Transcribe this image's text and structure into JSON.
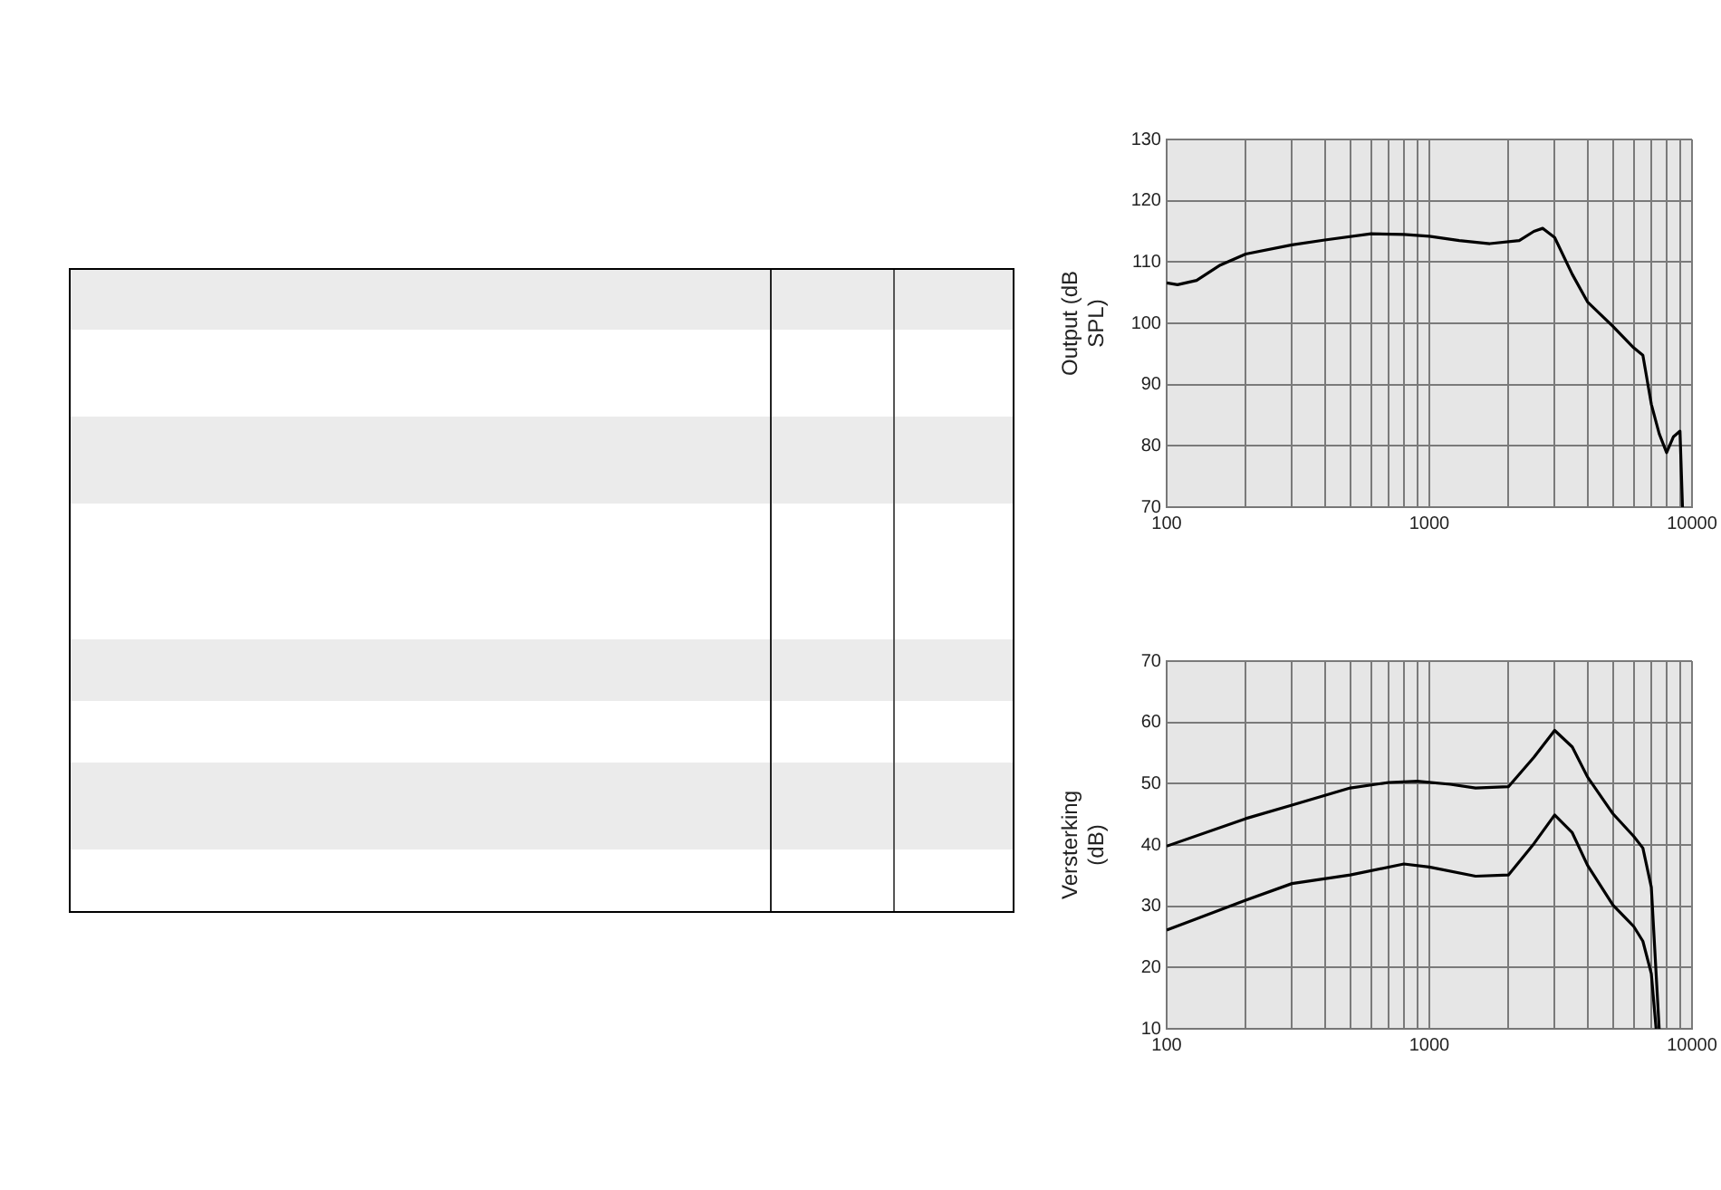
{
  "chart_data": [
    {
      "type": "line",
      "ylabel": "Output (dB SPL)",
      "log": "x",
      "grid": true,
      "legend": false,
      "marker": "none",
      "line_style": "solid",
      "xlim": [
        100,
        10000
      ],
      "xticks": [
        100,
        {
          "value": 200,
          "label": null
        },
        {
          "value": 300,
          "label": null
        },
        {
          "value": 400,
          "label": null
        },
        {
          "value": 500,
          "label": null
        },
        {
          "value": 600,
          "label": null
        },
        {
          "value": 700,
          "label": null
        },
        {
          "value": 800,
          "label": null
        },
        {
          "value": 900,
          "label": null
        },
        1000,
        {
          "value": 2000,
          "label": null
        },
        {
          "value": 3000,
          "label": null
        },
        {
          "value": 4000,
          "label": null
        },
        {
          "value": 5000,
          "label": null
        },
        {
          "value": 6000,
          "label": null
        },
        {
          "value": 7000,
          "label": null
        },
        {
          "value": 8000,
          "label": null
        },
        {
          "value": 9000,
          "label": null
        },
        10000
      ],
      "ylim": [
        70,
        130
      ],
      "yticks": [
        70,
        80,
        90,
        100,
        110,
        120,
        130
      ],
      "x": [
        100,
        110,
        130,
        160,
        200,
        300,
        400,
        600,
        800,
        1000,
        1300,
        1700,
        2200,
        2500,
        2700,
        3000,
        3500,
        4000,
        5000,
        6000,
        6500,
        7000,
        7500,
        8000,
        8500,
        9000,
        9200
      ],
      "series": [
        {
          "color": "#000000",
          "values": [
            106.6,
            106.3,
            107,
            109.5,
            111.3,
            112.8,
            113.6,
            114.6,
            114.5,
            114.2,
            113.5,
            113,
            113.5,
            115,
            115.5,
            114,
            108,
            103.5,
            99.5,
            96,
            94.8,
            86.8,
            82,
            78.9,
            81.5,
            82.4,
            70
          ]
        }
      ]
    },
    {
      "type": "line",
      "ylabel": "Versterking (dB)",
      "log": "x",
      "grid": true,
      "legend": false,
      "marker": "none",
      "line_style": "solid",
      "xlim": [
        100,
        10000
      ],
      "xticks": [
        100,
        {
          "value": 200,
          "label": null
        },
        {
          "value": 300,
          "label": null
        },
        {
          "value": 400,
          "label": null
        },
        {
          "value": 500,
          "label": null
        },
        {
          "value": 600,
          "label": null
        },
        {
          "value": 700,
          "label": null
        },
        {
          "value": 800,
          "label": null
        },
        {
          "value": 900,
          "label": null
        },
        1000,
        {
          "value": 2000,
          "label": null
        },
        {
          "value": 3000,
          "label": null
        },
        {
          "value": 4000,
          "label": null
        },
        {
          "value": 5000,
          "label": null
        },
        {
          "value": 6000,
          "label": null
        },
        {
          "value": 7000,
          "label": null
        },
        {
          "value": 8000,
          "label": null
        },
        {
          "value": 9000,
          "label": null
        },
        10000
      ],
      "ylim": [
        10,
        70
      ],
      "yticks": [
        10,
        20,
        30,
        40,
        50,
        60,
        70
      ],
      "series": [
        {
          "color": "#000000",
          "x": [
            100,
            200,
            300,
            500,
            700,
            900,
            1200,
            1500,
            2000,
            2500,
            3000,
            3500,
            4000,
            5000,
            6000,
            6500,
            7000,
            7300,
            7500
          ],
          "values": [
            39.8,
            44.3,
            46.5,
            49.3,
            50.2,
            50.4,
            49.9,
            49.3,
            49.5,
            54.3,
            58.7,
            56,
            51.1,
            45.1,
            41.4,
            39.5,
            33.1,
            19,
            10
          ]
        },
        {
          "color": "#000000",
          "x": [
            100,
            200,
            300,
            500,
            800,
            1000,
            1500,
            2000,
            2500,
            3000,
            3500,
            4000,
            5000,
            6000,
            6500,
            7000,
            7300
          ],
          "values": [
            26.1,
            31,
            33.7,
            35.1,
            36.9,
            36.4,
            34.9,
            35.1,
            40.2,
            44.9,
            42,
            36.7,
            30.2,
            26.7,
            24.3,
            19,
            10
          ]
        }
      ]
    }
  ]
}
